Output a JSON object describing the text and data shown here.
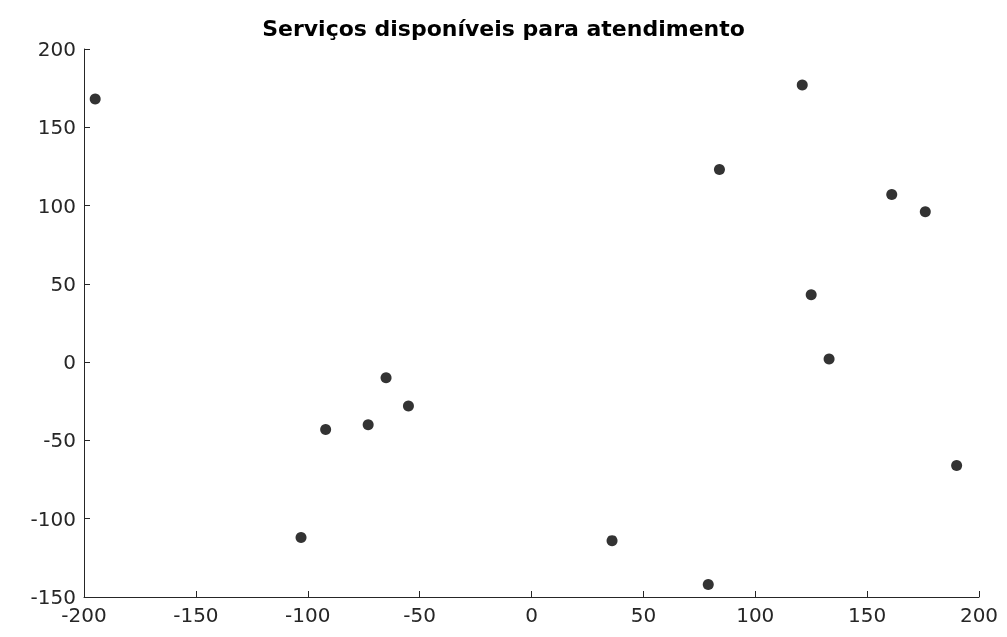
{
  "chart_data": {
    "type": "scatter",
    "title": "Serviços disponíveis para atendimento",
    "x": [
      -195,
      -103,
      -92,
      -73,
      -65,
      -55,
      36,
      79,
      84,
      121,
      125,
      133,
      161,
      176,
      190
    ],
    "values": [
      168,
      -112,
      -43,
      -40,
      -10,
      -28,
      -114,
      -142,
      123,
      177,
      43,
      2,
      107,
      96,
      -66
    ],
    "color": "#000000",
    "marker": "circle",
    "xlim": [
      -200,
      200
    ],
    "xticks": [
      -200,
      -150,
      -100,
      -50,
      0,
      50,
      100,
      150,
      200
    ],
    "ylim": [
      -150,
      200
    ],
    "yticks": [
      -150,
      -100,
      -50,
      0,
      50,
      100,
      150,
      200
    ],
    "grid": false
  }
}
